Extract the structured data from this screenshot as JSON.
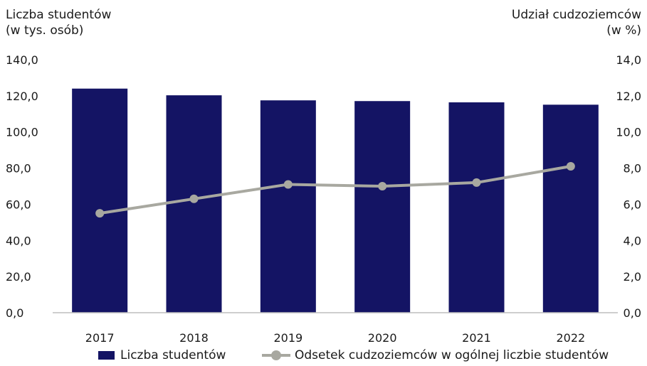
{
  "chart_data": {
    "type": "bar",
    "categories": [
      "2017",
      "2018",
      "2019",
      "2020",
      "2021",
      "2022"
    ],
    "series": [
      {
        "name": "Liczba studentów",
        "type": "bar",
        "axis": "left",
        "values": [
          124.0,
          120.3,
          117.5,
          117.1,
          116.4,
          115.1
        ]
      },
      {
        "name": "Odsetek cudzoziemców w ogólnej liczbie studentów",
        "type": "line",
        "axis": "right",
        "values": [
          5.5,
          6.3,
          7.1,
          7.0,
          7.2,
          8.1
        ]
      }
    ],
    "ylabel_left": [
      "Liczba studentów",
      "(w tys. osób)"
    ],
    "ylabel_right": [
      "Udział cudzoziemców",
      "(w %)"
    ],
    "ylim_left": [
      0,
      140
    ],
    "ylim_right": [
      0,
      14
    ],
    "yticks_left": [
      "0,0",
      "20,0",
      "40,0",
      "60,0",
      "80,0",
      "100,0",
      "120,0",
      "140,0"
    ],
    "yticks_right": [
      "0,0",
      "2,0",
      "4,0",
      "6,0",
      "8,0",
      "10,0",
      "12,0",
      "14,0"
    ],
    "grid": false,
    "legend_position": "bottom",
    "colors": {
      "bars": "#141464",
      "line": "#a8a8a0",
      "axis": "#bdbdbd"
    }
  }
}
